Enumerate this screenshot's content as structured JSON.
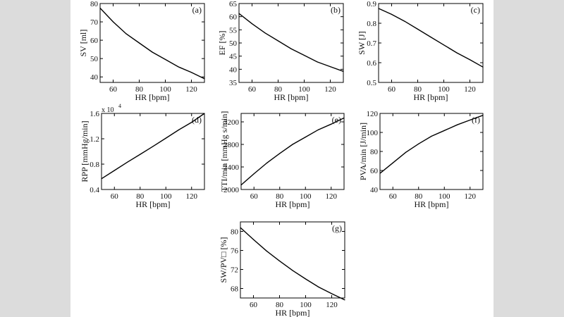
{
  "chart_data": [
    {
      "panel": "(a)",
      "type": "line",
      "xlabel": "HR [bpm]",
      "ylabel": "SV [ml]",
      "xlim": [
        50,
        130
      ],
      "ylim": [
        37,
        80
      ],
      "xticks": [
        "60",
        "80",
        "100",
        "120"
      ],
      "yticks": [
        "40",
        "50",
        "60",
        "70",
        "80"
      ],
      "x": [
        50,
        60,
        70,
        80,
        90,
        100,
        110,
        120,
        130
      ],
      "y": [
        77.5,
        70.0,
        63.5,
        58.5,
        53.5,
        49.5,
        45.5,
        42.5,
        39.0
      ]
    },
    {
      "panel": "(b)",
      "type": "line",
      "xlabel": "HR [bpm]",
      "ylabel": "EF [%]",
      "xlim": [
        50,
        130
      ],
      "ylim": [
        35,
        65
      ],
      "xticks": [
        "60",
        "80",
        "100",
        "120"
      ],
      "yticks": [
        "35",
        "40",
        "45",
        "50",
        "55",
        "60",
        "65"
      ],
      "x": [
        50,
        60,
        70,
        80,
        90,
        100,
        110,
        120,
        130
      ],
      "y": [
        61.2,
        57.3,
        53.8,
        50.8,
        47.8,
        45.3,
        42.8,
        41.0,
        39.2
      ]
    },
    {
      "panel": "(c)",
      "type": "line",
      "xlabel": "HR [bpm]",
      "ylabel": "SW [J]",
      "xlim": [
        50,
        130
      ],
      "ylim": [
        0.5,
        0.9
      ],
      "xticks": [
        "60",
        "80",
        "100",
        "120"
      ],
      "yticks": [
        "0.5",
        "0.6",
        "0.7",
        "0.8",
        "0.9"
      ],
      "x": [
        50,
        60,
        70,
        80,
        90,
        100,
        110,
        120,
        130
      ],
      "y": [
        0.875,
        0.845,
        0.81,
        0.77,
        0.73,
        0.69,
        0.65,
        0.615,
        0.578
      ]
    },
    {
      "panel": "(d)",
      "type": "line",
      "xlabel": "HR [bpm]",
      "ylabel": "RPP [mmHg/min]",
      "exponent_label": "x 10",
      "exponent_power": "4",
      "xlim": [
        50,
        130
      ],
      "ylim": [
        0.4,
        1.6
      ],
      "xticks": [
        "60",
        "80",
        "100",
        "120"
      ],
      "yticks": [
        "0.4",
        "0.8",
        "1.2",
        "1.6"
      ],
      "x": [
        50,
        60,
        70,
        80,
        90,
        100,
        110,
        120,
        130
      ],
      "y": [
        0.57,
        0.7,
        0.83,
        0.955,
        1.08,
        1.21,
        1.34,
        1.46,
        1.6
      ]
    },
    {
      "panel": "(e)",
      "type": "line",
      "xlabel": "HR [bpm]",
      "ylabel": "TTI/min [mmHg s/min]",
      "xlim": [
        50,
        130
      ],
      "ylim": [
        2000,
        3350
      ],
      "xticks": [
        "60",
        "80",
        "100",
        "120"
      ],
      "yticks": [
        "2000",
        "2400",
        "2800",
        "3200"
      ],
      "x": [
        50,
        60,
        70,
        80,
        90,
        100,
        110,
        120,
        130
      ],
      "y": [
        2080,
        2280,
        2470,
        2640,
        2800,
        2930,
        3060,
        3160,
        3270
      ]
    },
    {
      "panel": "(f)",
      "type": "line",
      "xlabel": "HR [bpm]",
      "ylabel": "PVA/min [J/min]",
      "xlim": [
        50,
        130
      ],
      "ylim": [
        40,
        120
      ],
      "xticks": [
        "60",
        "80",
        "100",
        "120"
      ],
      "yticks": [
        "40",
        "60",
        "80",
        "100",
        "120"
      ],
      "x": [
        50,
        60,
        70,
        80,
        90,
        100,
        110,
        120,
        130
      ],
      "y": [
        57,
        68,
        79,
        88,
        96,
        102,
        108,
        113,
        118
      ]
    },
    {
      "panel": "(g)",
      "type": "line",
      "xlabel": "HR [bpm]",
      "ylabel": "SW/PV□ [%]",
      "xlim": [
        50,
        130
      ],
      "ylim": [
        66,
        82
      ],
      "xticks": [
        "60",
        "80",
        "100",
        "120"
      ],
      "yticks": [
        "68",
        "72",
        "76",
        "80"
      ],
      "x": [
        50,
        60,
        70,
        80,
        90,
        100,
        110,
        120,
        130
      ],
      "y": [
        80.8,
        78.3,
        75.9,
        73.8,
        71.8,
        70.0,
        68.3,
        66.9,
        65.6
      ]
    }
  ]
}
